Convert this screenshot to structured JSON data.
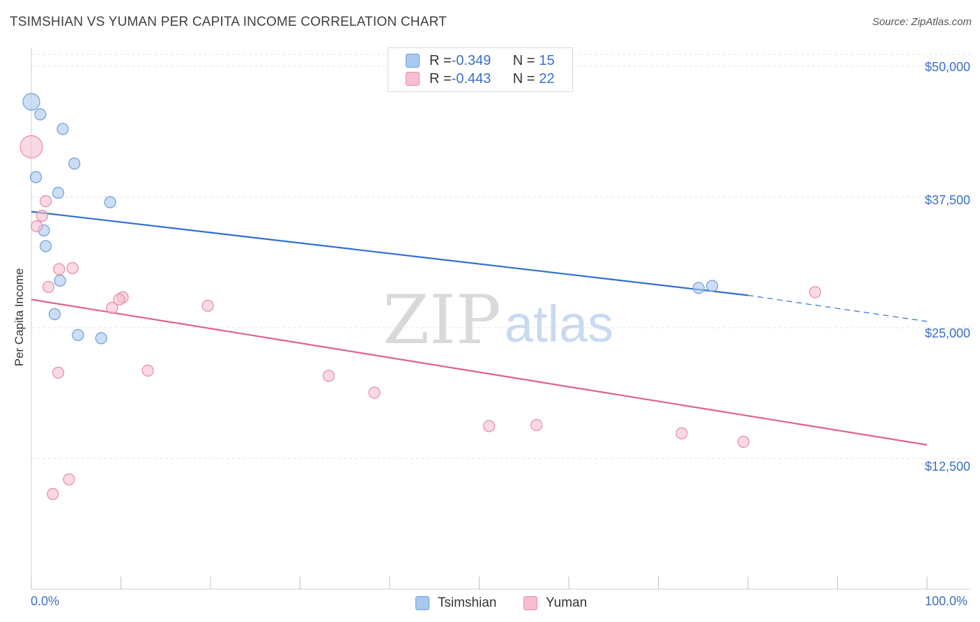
{
  "title": "TSIMSHIAN VS YUMAN PER CAPITA INCOME CORRELATION CHART",
  "source": "Source: ZipAtlas.com",
  "watermark": {
    "zip": "ZIP",
    "atlas": "atlas"
  },
  "legend_top": [
    {
      "r_label": "R = ",
      "r_value": "-0.349",
      "n_label": "N = ",
      "n_value": "15",
      "color": "#a9c8ef",
      "border": "#6d9fd8"
    },
    {
      "r_label": "R = ",
      "r_value": "-0.443",
      "n_label": "N = ",
      "n_value": "22",
      "color": "#f5bfcf",
      "border": "#e88aa6"
    }
  ],
  "legend_bottom": [
    {
      "name": "Tsimshian",
      "color": "#a9c8ef",
      "border": "#6d9fd8"
    },
    {
      "name": "Yuman",
      "color": "#f5bfcf",
      "border": "#e88aa6"
    }
  ],
  "chart_data": {
    "type": "scatter",
    "title": "TSIMSHIAN VS YUMAN PER CAPITA INCOME CORRELATION CHART",
    "xlabel": "",
    "ylabel": "Per Capita Income",
    "xlim": [
      0,
      100
    ],
    "ylim": [
      0,
      51000
    ],
    "x_tick_labels": [
      "0.0%",
      "100.0%"
    ],
    "y_ticks": [
      {
        "value": 50000,
        "label": "$50,000"
      },
      {
        "value": 37500,
        "label": "$37,500"
      },
      {
        "value": 25000,
        "label": "$25,000"
      },
      {
        "value": 12500,
        "label": "$12,500"
      }
    ],
    "series": [
      {
        "name": "Tsimshian",
        "color": "#6d9fd8",
        "fill": "#a9c8ef",
        "line_color": "#2f6fd1",
        "points": [
          {
            "x": 0.0,
            "y": 46600,
            "size": 12
          },
          {
            "x": 1.0,
            "y": 45400,
            "size": 8
          },
          {
            "x": 3.5,
            "y": 44000,
            "size": 8
          },
          {
            "x": 4.8,
            "y": 40700,
            "size": 8
          },
          {
            "x": 0.5,
            "y": 39400,
            "size": 8
          },
          {
            "x": 3.0,
            "y": 37900,
            "size": 8
          },
          {
            "x": 8.8,
            "y": 37000,
            "size": 8
          },
          {
            "x": 1.4,
            "y": 34300,
            "size": 8
          },
          {
            "x": 1.6,
            "y": 32800,
            "size": 8
          },
          {
            "x": 3.2,
            "y": 29500,
            "size": 8
          },
          {
            "x": 2.6,
            "y": 26300,
            "size": 8
          },
          {
            "x": 5.2,
            "y": 24300,
            "size": 8
          },
          {
            "x": 7.8,
            "y": 24000,
            "size": 8
          },
          {
            "x": 74.5,
            "y": 28800,
            "size": 8
          },
          {
            "x": 76.0,
            "y": 29000,
            "size": 8
          }
        ],
        "trend": {
          "x": [
            0,
            80
          ],
          "y": [
            36100,
            28100
          ],
          "dashed_to": {
            "x": 100,
            "y": 25600
          }
        }
      },
      {
        "name": "Yuman",
        "color": "#e88aa6",
        "fill": "#f5bfcf",
        "line_color": "#e0618a",
        "points": [
          {
            "x": 0.0,
            "y": 42300,
            "size": 16
          },
          {
            "x": 1.6,
            "y": 37100,
            "size": 8
          },
          {
            "x": 1.2,
            "y": 35700,
            "size": 8
          },
          {
            "x": 0.6,
            "y": 34700,
            "size": 8
          },
          {
            "x": 3.1,
            "y": 30600,
            "size": 8
          },
          {
            "x": 4.6,
            "y": 30700,
            "size": 8
          },
          {
            "x": 1.9,
            "y": 28900,
            "size": 8
          },
          {
            "x": 10.2,
            "y": 27900,
            "size": 8
          },
          {
            "x": 9.8,
            "y": 27700,
            "size": 8
          },
          {
            "x": 9.0,
            "y": 26900,
            "size": 8
          },
          {
            "x": 19.7,
            "y": 27100,
            "size": 8
          },
          {
            "x": 3.0,
            "y": 20700,
            "size": 8
          },
          {
            "x": 13.0,
            "y": 20900,
            "size": 8
          },
          {
            "x": 33.2,
            "y": 20400,
            "size": 8
          },
          {
            "x": 38.3,
            "y": 18800,
            "size": 8
          },
          {
            "x": 51.1,
            "y": 15600,
            "size": 8
          },
          {
            "x": 56.4,
            "y": 15700,
            "size": 8
          },
          {
            "x": 72.6,
            "y": 14900,
            "size": 8
          },
          {
            "x": 79.5,
            "y": 14100,
            "size": 8
          },
          {
            "x": 87.5,
            "y": 28400,
            "size": 8
          },
          {
            "x": 4.2,
            "y": 10500,
            "size": 8
          },
          {
            "x": 2.4,
            "y": 9100,
            "size": 8
          }
        ],
        "trend": {
          "x": [
            0,
            100
          ],
          "y": [
            27700,
            13800
          ]
        }
      }
    ]
  }
}
